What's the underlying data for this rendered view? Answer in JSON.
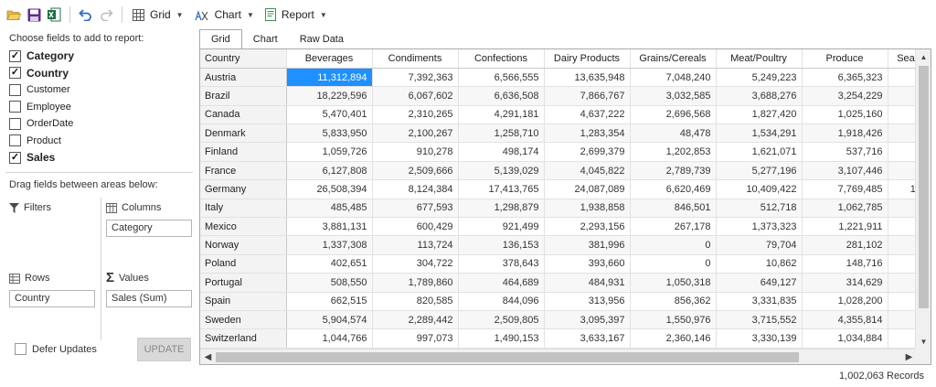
{
  "toolbar": {
    "icons": [
      "open-folder-icon",
      "save-icon",
      "excel-icon",
      "undo-icon",
      "redo-icon"
    ],
    "grid_label": "Grid",
    "chart_label": "Chart",
    "report_label": "Report"
  },
  "fields_panel": {
    "heading": "Choose fields to add to report:",
    "fields": [
      {
        "label": "Category",
        "checked": true
      },
      {
        "label": "Country",
        "checked": true
      },
      {
        "label": "Customer",
        "checked": false
      },
      {
        "label": "Employee",
        "checked": false
      },
      {
        "label": "OrderDate",
        "checked": false
      },
      {
        "label": "Product",
        "checked": false
      },
      {
        "label": "Sales",
        "checked": true
      }
    ],
    "drag_heading": "Drag fields between areas below:",
    "filters_label": "Filters",
    "columns_label": "Columns",
    "columns_field": "Category",
    "rows_label": "Rows",
    "rows_field": "Country",
    "values_label": "Values",
    "values_field": "Sales (Sum)",
    "defer_label": "Defer Updates",
    "update_label": "UPDATE"
  },
  "tabs": [
    {
      "label": "Grid",
      "active": true
    },
    {
      "label": "Chart",
      "active": false
    },
    {
      "label": "Raw Data",
      "active": false
    }
  ],
  "grid": {
    "corner_label": "Country",
    "columns": [
      "Beverages",
      "Condiments",
      "Confections",
      "Dairy Products",
      "Grains/Cereals",
      "Meat/Poultry",
      "Produce",
      "Sea"
    ],
    "rows": [
      {
        "country": "Austria",
        "values": [
          "11,312,894",
          "7,392,363",
          "6,566,555",
          "13,635,948",
          "7,048,240",
          "5,249,223",
          "6,365,323",
          ""
        ]
      },
      {
        "country": "Brazil",
        "values": [
          "18,229,596",
          "6,067,602",
          "6,636,508",
          "7,866,767",
          "3,032,585",
          "3,688,276",
          "3,254,229",
          ""
        ]
      },
      {
        "country": "Canada",
        "values": [
          "5,470,401",
          "2,310,265",
          "4,291,181",
          "4,637,222",
          "2,696,568",
          "1,827,420",
          "1,025,160",
          ""
        ]
      },
      {
        "country": "Denmark",
        "values": [
          "5,833,950",
          "2,100,267",
          "1,258,710",
          "1,283,354",
          "48,478",
          "1,534,291",
          "1,918,426",
          ""
        ]
      },
      {
        "country": "Finland",
        "values": [
          "1,059,726",
          "910,278",
          "498,174",
          "2,699,379",
          "1,202,853",
          "1,621,071",
          "537,716",
          ""
        ]
      },
      {
        "country": "France",
        "values": [
          "6,127,808",
          "2,509,666",
          "5,139,029",
          "4,045,822",
          "2,789,739",
          "5,277,196",
          "3,107,446",
          ""
        ]
      },
      {
        "country": "Germany",
        "values": [
          "26,508,394",
          "8,124,384",
          "17,413,765",
          "24,087,089",
          "6,620,469",
          "10,409,422",
          "7,769,485",
          "1("
        ]
      },
      {
        "country": "Italy",
        "values": [
          "485,485",
          "677,593",
          "1,298,879",
          "1,938,858",
          "846,501",
          "512,718",
          "1,062,785",
          ""
        ]
      },
      {
        "country": "Mexico",
        "values": [
          "3,881,131",
          "600,429",
          "921,499",
          "2,293,156",
          "267,178",
          "1,373,323",
          "1,221,911",
          ""
        ]
      },
      {
        "country": "Norway",
        "values": [
          "1,337,308",
          "113,724",
          "136,153",
          "381,996",
          "0",
          "79,704",
          "281,102",
          ""
        ]
      },
      {
        "country": "Poland",
        "values": [
          "402,651",
          "304,722",
          "378,643",
          "393,660",
          "0",
          "10,862",
          "148,716",
          ""
        ]
      },
      {
        "country": "Portugal",
        "values": [
          "508,550",
          "1,789,860",
          "464,689",
          "484,931",
          "1,050,318",
          "649,127",
          "314,629",
          ""
        ]
      },
      {
        "country": "Spain",
        "values": [
          "662,515",
          "820,585",
          "844,096",
          "313,956",
          "856,362",
          "3,331,835",
          "1,028,200",
          ""
        ]
      },
      {
        "country": "Sweden",
        "values": [
          "5,904,574",
          "2,289,442",
          "2,509,805",
          "3,095,397",
          "1,550,976",
          "3,715,552",
          "4,355,814",
          ""
        ]
      },
      {
        "country": "Switzerland",
        "values": [
          "1,044,766",
          "997,073",
          "1,490,153",
          "3,633,167",
          "2,360,146",
          "3,330,139",
          "1,034,884",
          ""
        ]
      }
    ],
    "selected_cell": "Austria / Beverages"
  },
  "status": {
    "records": "1,002,063 Records"
  },
  "colors": {
    "selection": "#1e90ff",
    "excel_green": "#1d7044",
    "save_purple": "#5c2d91",
    "undo_blue": "#2b6cc4"
  }
}
